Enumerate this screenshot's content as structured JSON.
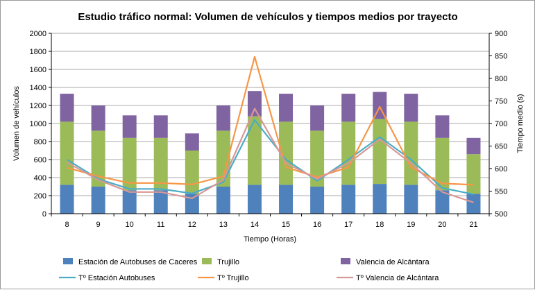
{
  "chart_data": {
    "type": "bar",
    "title": "Estudio tráfico normal: Volumen de vehículos y tiempos medios por trayecto",
    "xlabel": "Tiempo (Horas)",
    "ylabel": "Volumen de vehículos",
    "y2label": "Tiempo medio (s)",
    "categories": [
      "8",
      "9",
      "10",
      "11",
      "12",
      "13",
      "14",
      "15",
      "16",
      "17",
      "18",
      "19",
      "20",
      "21"
    ],
    "ylim": [
      0,
      2000
    ],
    "y2lim": [
      500,
      900
    ],
    "yticks": [
      "0",
      "200",
      "400",
      "600",
      "800",
      "1000",
      "1200",
      "1400",
      "1600",
      "1800",
      "2000"
    ],
    "y2ticks": [
      "500",
      "550",
      "600",
      "650",
      "700",
      "750",
      "800",
      "850",
      "900"
    ],
    "stacked": true,
    "grid": true,
    "legend_position": "bottom",
    "series": [
      {
        "name": "Estación de Autobuses de Caceres",
        "type": "bar",
        "axis": "left",
        "color": "#4f81bd",
        "values": [
          320,
          300,
          260,
          260,
          220,
          300,
          320,
          320,
          300,
          320,
          330,
          320,
          260,
          220
        ]
      },
      {
        "name": "Trujillo",
        "type": "bar",
        "axis": "left",
        "color": "#9bbb59",
        "values": [
          700,
          620,
          580,
          580,
          480,
          620,
          760,
          700,
          620,
          700,
          720,
          700,
          580,
          440
        ]
      },
      {
        "name": "Valencia de Alcántara",
        "type": "bar",
        "axis": "left",
        "color": "#8064a2",
        "values": [
          310,
          280,
          250,
          250,
          190,
          280,
          280,
          310,
          280,
          310,
          300,
          310,
          250,
          180
        ]
      },
      {
        "name": "Tº Estación Autobuses",
        "type": "line",
        "axis": "right",
        "color": "#4bacc6",
        "values": [
          620,
          577,
          555,
          555,
          545,
          570,
          708,
          620,
          573,
          620,
          670,
          620,
          557,
          543
        ]
      },
      {
        "name": "Tº Trujillo",
        "type": "line",
        "axis": "right",
        "color": "#f79646",
        "values": [
          602,
          583,
          568,
          568,
          565,
          583,
          848,
          603,
          581,
          603,
          737,
          603,
          567,
          564
        ]
      },
      {
        "name": "Tº Valencia de Alcántara",
        "type": "line",
        "axis": "right",
        "color": "#d99795",
        "values": [
          614,
          575,
          548,
          548,
          534,
          575,
          733,
          612,
          577,
          612,
          665,
          612,
          548,
          525
        ]
      }
    ]
  }
}
